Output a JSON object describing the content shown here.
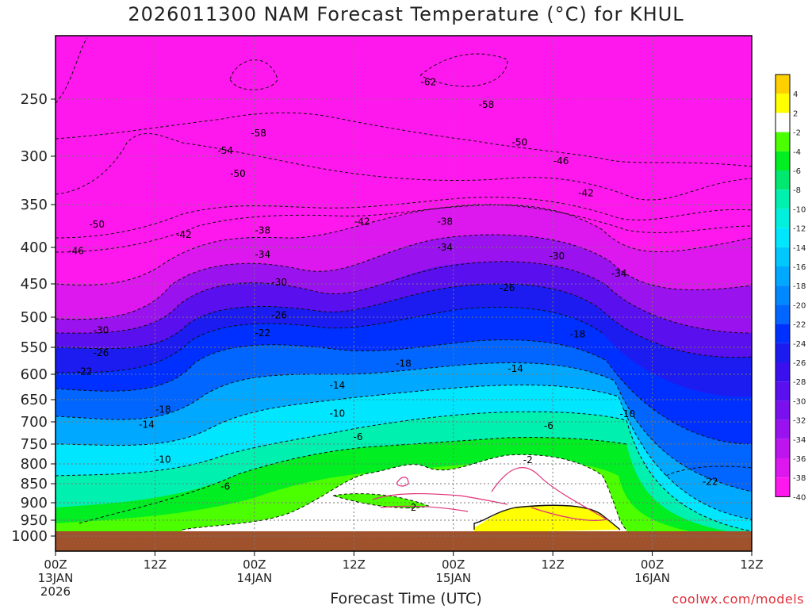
{
  "title": "2026011300 NAM Forecast Temperature (°C) for KHUL",
  "credit": "coolwx.com/models",
  "chart_data": {
    "type": "heatmap",
    "title": "2026011300 NAM Forecast Temperature (°C) for KHUL",
    "xlabel": "Forecast Time (UTC)",
    "ylabel": "",
    "x_range_hours": [
      0,
      84
    ],
    "y_levels": [
      "250",
      "300",
      "350",
      "400",
      "450",
      "500",
      "550",
      "600",
      "650",
      "700",
      "750",
      "800",
      "850",
      "900",
      "950",
      "1000"
    ],
    "x_ticks": [
      {
        "hour": 0,
        "lines": [
          "00Z",
          "13JAN",
          "2026"
        ]
      },
      {
        "hour": 12,
        "lines": [
          "12Z"
        ]
      },
      {
        "hour": 24,
        "lines": [
          "00Z",
          "14JAN"
        ]
      },
      {
        "hour": 36,
        "lines": [
          "12Z"
        ]
      },
      {
        "hour": 48,
        "lines": [
          "00Z",
          "15JAN"
        ]
      },
      {
        "hour": 60,
        "lines": [
          "12Z"
        ]
      },
      {
        "hour": 72,
        "lines": [
          "00Z",
          "16JAN"
        ]
      },
      {
        "hour": 84,
        "lines": [
          "12Z"
        ]
      }
    ],
    "colorbar": {
      "labels": [
        "4",
        "2",
        "-2",
        "-4",
        "-6",
        "-8",
        "-10",
        "-12",
        "-14",
        "-16",
        "-18",
        "-20",
        "-22",
        "-24",
        "-26",
        "-28",
        "-30",
        "-32",
        "-34",
        "-36",
        "-38",
        "-40"
      ],
      "colors": [
        "#ffd000",
        "#ffff00",
        "#ffffff",
        "#4cff00",
        "#00ee22",
        "#00e870",
        "#00f0b0",
        "#00f0dd",
        "#00e6ff",
        "#00c8ff",
        "#00a8ff",
        "#0088ff",
        "#0066ff",
        "#0030ff",
        "#1c1cf0",
        "#3a10ee",
        "#5a10ee",
        "#7a10ee",
        "#9a12ee",
        "#be14ee",
        "#dc18ee",
        "#ff18ee"
      ]
    },
    "temperature_profile_at_00Z_13JAN": {
      "pressure": [
        250,
        300,
        350,
        400,
        450,
        500,
        550,
        600,
        650,
        700,
        750,
        800,
        850,
        900,
        950
      ],
      "temperature": [
        -58,
        -54,
        -50,
        -46,
        -38,
        -32,
        -27,
        -22,
        -18,
        -14,
        -11,
        -9,
        -7,
        -5,
        -3
      ]
    },
    "contour_labels": [
      {
        "text": "-62",
        "hour": 45,
        "level": 235
      },
      {
        "text": "-58",
        "hour": 52,
        "level": 255
      },
      {
        "text": "-58",
        "hour": 24.5,
        "level": 280
      },
      {
        "text": "-54",
        "hour": 20.5,
        "level": 295
      },
      {
        "text": "-50",
        "hour": 22,
        "level": 318
      },
      {
        "text": "-50",
        "hour": 56,
        "level": 288
      },
      {
        "text": "-46",
        "hour": 61,
        "level": 305
      },
      {
        "text": "-42",
        "hour": 64,
        "level": 338
      },
      {
        "text": "-50",
        "hour": 5,
        "level": 373
      },
      {
        "text": "-46",
        "hour": 2.5,
        "level": 405
      },
      {
        "text": "-42",
        "hour": 15.5,
        "level": 385
      },
      {
        "text": "-42",
        "hour": 37,
        "level": 370
      },
      {
        "text": "-38",
        "hour": 47,
        "level": 370
      },
      {
        "text": "-38",
        "hour": 25,
        "level": 380
      },
      {
        "text": "-34",
        "hour": 25,
        "level": 410
      },
      {
        "text": "-34",
        "hour": 47,
        "level": 400
      },
      {
        "text": "-30",
        "hour": 60.5,
        "level": 412
      },
      {
        "text": "-34",
        "hour": 68,
        "level": 436
      },
      {
        "text": "-30",
        "hour": 27,
        "level": 448
      },
      {
        "text": "-26",
        "hour": 54.5,
        "level": 456
      },
      {
        "text": "-26",
        "hour": 27,
        "level": 497
      },
      {
        "text": "-22",
        "hour": 25,
        "level": 526
      },
      {
        "text": "-30",
        "hour": 5.5,
        "level": 522
      },
      {
        "text": "-26",
        "hour": 5.5,
        "level": 560
      },
      {
        "text": "-22",
        "hour": 3.5,
        "level": 595
      },
      {
        "text": "-18",
        "hour": 42,
        "level": 580
      },
      {
        "text": "-18",
        "hour": 63,
        "level": 528
      },
      {
        "text": "-14",
        "hour": 55.5,
        "level": 590
      },
      {
        "text": "-14",
        "hour": 34,
        "level": 622
      },
      {
        "text": "-18",
        "hour": 13,
        "level": 672
      },
      {
        "text": "-14",
        "hour": 11,
        "level": 706
      },
      {
        "text": "-10",
        "hour": 34,
        "level": 681
      },
      {
        "text": "-10",
        "hour": 69,
        "level": 682
      },
      {
        "text": "-6",
        "hour": 36.5,
        "level": 734
      },
      {
        "text": "-6",
        "hour": 59.5,
        "level": 709
      },
      {
        "text": "-10",
        "hour": 13,
        "level": 789
      },
      {
        "text": "-6",
        "hour": 20.5,
        "level": 857
      },
      {
        "text": "-2",
        "hour": 57,
        "level": 790
      },
      {
        "text": "-2",
        "hour": 43,
        "level": 914
      },
      {
        "text": "-22",
        "hour": 79,
        "level": 845
      }
    ]
  }
}
